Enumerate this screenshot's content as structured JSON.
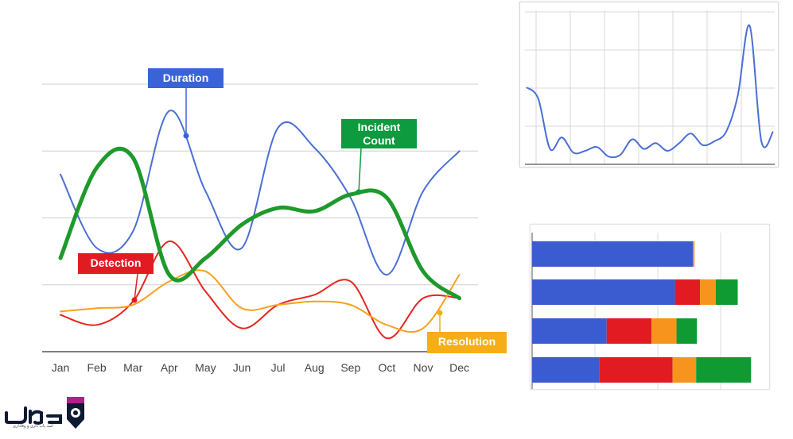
{
  "chart_data": [
    {
      "type": "line",
      "categories": [
        "Jan",
        "Feb",
        "Mar",
        "Apr",
        "May",
        "Jun",
        "Jul",
        "Aug",
        "Sep",
        "Oct",
        "Nov",
        "Dec"
      ],
      "ylim": [
        0,
        4
      ],
      "grid": true,
      "series": [
        {
          "name": "Duration",
          "color": "#4a6fd6",
          "width": 2,
          "values": [
            2.65,
            1.55,
            1.8,
            3.6,
            2.4,
            1.55,
            3.35,
            3.05,
            2.3,
            1.15,
            2.4,
            3.0
          ]
        },
        {
          "name": "Incident Count",
          "color": "#1e9a2c",
          "width": 5,
          "values": [
            1.4,
            2.75,
            2.9,
            1.15,
            1.4,
            1.9,
            2.15,
            2.1,
            2.35,
            2.3,
            1.2,
            0.8
          ]
        },
        {
          "name": "Detection",
          "color": "#e6261f",
          "width": 2,
          "values": [
            0.55,
            0.4,
            0.75,
            1.65,
            0.9,
            0.35,
            0.7,
            0.85,
            1.05,
            0.2,
            0.8,
            0.8
          ]
        },
        {
          "name": "Resolution",
          "color": "#f7a11c",
          "width": 2,
          "values": [
            0.6,
            0.65,
            0.7,
            1.05,
            1.2,
            0.65,
            0.7,
            0.75,
            0.7,
            0.4,
            0.35,
            1.15
          ]
        }
      ],
      "callouts": [
        {
          "label": "Duration",
          "series": 0,
          "bg": "#3a63d8"
        },
        {
          "label": "Incident Count",
          "series": 1,
          "bg": "#0e9a3e"
        },
        {
          "label": "Detection",
          "series": 2,
          "bg": "#e21b23"
        },
        {
          "label": "Resolution",
          "series": 3,
          "bg": "#f6ad16"
        }
      ]
    },
    {
      "type": "line",
      "ylim": [
        0,
        4
      ],
      "grid": true,
      "series": [
        {
          "color": "#4a6fd6",
          "values": [
            2.0,
            1.7,
            0.4,
            0.7,
            0.3,
            0.35,
            0.45,
            0.2,
            0.25,
            0.65,
            0.4,
            0.55,
            0.35,
            0.55,
            0.8,
            0.5,
            0.6,
            0.85,
            1.8,
            3.6,
            0.6,
            0.85
          ]
        }
      ]
    },
    {
      "type": "bar",
      "orientation": "horizontal",
      "stacked": true,
      "categories": [
        "",
        "",
        "",
        ""
      ],
      "xlim": [
        0,
        300
      ],
      "grid": true,
      "series": [
        {
          "color": "#3b5bd0",
          "values": [
            205,
            182,
            95,
            86
          ]
        },
        {
          "color": "#e21b23",
          "values": [
            0,
            32,
            57,
            93
          ]
        },
        {
          "color": "#f7941d",
          "values": [
            2,
            20,
            32,
            30
          ]
        },
        {
          "color": "#0f9a32",
          "values": [
            0,
            28,
            26,
            70
          ]
        }
      ]
    }
  ],
  "logo": {
    "name": "brand-logo",
    "primary_color": "#0e1a33",
    "accent_color": "#b0208a",
    "tagline": "امید یاب داری و وفاداری"
  }
}
